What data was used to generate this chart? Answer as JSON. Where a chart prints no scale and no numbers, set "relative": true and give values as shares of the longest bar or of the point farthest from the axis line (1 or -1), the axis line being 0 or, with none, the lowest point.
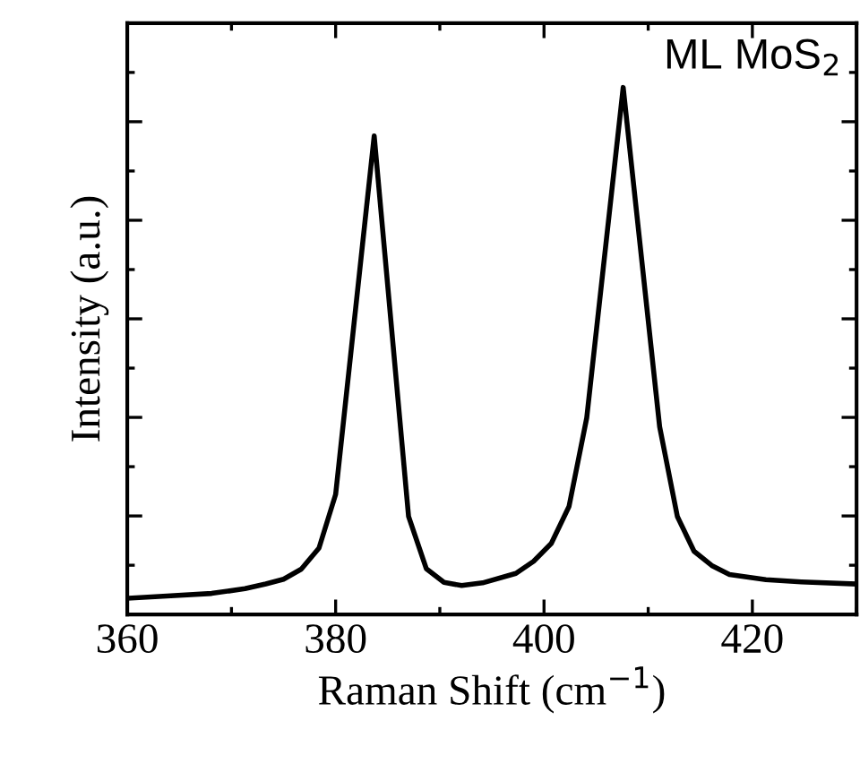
{
  "chart_data": {
    "type": "line",
    "relative": true,
    "xlabel": "Raman Shift (cm$^{−1}$)",
    "ylabel": "Intensity (a.u.)",
    "annotations": [
      "ML MoS$_{2}$"
    ],
    "xlim": [
      360,
      430
    ],
    "xticks": [
      360,
      380,
      400,
      420
    ],
    "tick_labels": "x",
    "grid": false,
    "legend": false,
    "marker": "none",
    "line_style": "solid",
    "series": [
      {
        "color": "#000000",
        "x": [
          360.1,
          363.8,
          368.1,
          371.3,
          373.3,
          375.0,
          376.7,
          378.4,
          380.0,
          383.7,
          387.0,
          388.7,
          390.4,
          392.1,
          394.1,
          397.3,
          399.0,
          400.7,
          402.4,
          404.1,
          407.6,
          411.1,
          412.8,
          414.4,
          416.1,
          417.8,
          421.3,
          424.7,
          429.8
        ],
        "values": [
          0.031,
          0.035,
          0.04,
          0.049,
          0.058,
          0.067,
          0.086,
          0.126,
          0.228,
          0.908,
          0.186,
          0.087,
          0.061,
          0.055,
          0.06,
          0.078,
          0.101,
          0.135,
          0.205,
          0.373,
          1.0,
          0.356,
          0.186,
          0.12,
          0.093,
          0.076,
          0.066,
          0.062,
          0.058
        ]
      }
    ]
  }
}
